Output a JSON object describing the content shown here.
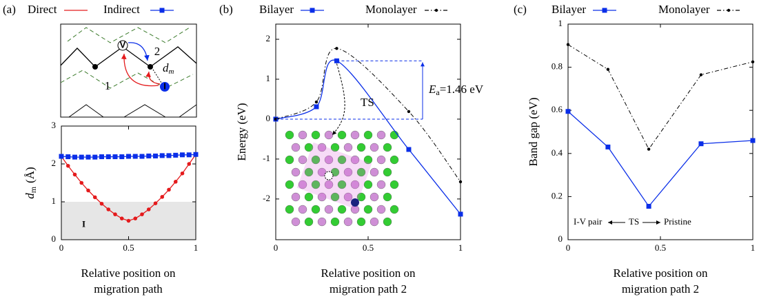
{
  "chart_data": [
    {
      "type": "line",
      "panel_label": "(a)",
      "diagram": {
        "vacancy": "V",
        "path1": "1",
        "path2": "2",
        "interstitial": "I",
        "dm": {
          "main": "d",
          "sub": "m"
        }
      },
      "xlabel": [
        "Relative position on",
        "migration path"
      ],
      "ylabel": {
        "main": "d",
        "sub": "m",
        "unit": "(Å)"
      },
      "x": [
        0,
        0.05,
        0.1,
        0.15,
        0.2,
        0.25,
        0.3,
        0.35,
        0.4,
        0.45,
        0.5,
        0.55,
        0.6,
        0.65,
        0.7,
        0.75,
        0.8,
        0.85,
        0.9,
        0.95,
        1
      ],
      "series": [
        {
          "name": "Direct",
          "color": "#e41a1c",
          "marker": "dot",
          "values": [
            2.2,
            1.95,
            1.72,
            1.5,
            1.3,
            1.12,
            0.95,
            0.8,
            0.67,
            0.56,
            0.5,
            0.56,
            0.67,
            0.8,
            0.96,
            1.13,
            1.32,
            1.53,
            1.75,
            2.0,
            2.25
          ]
        },
        {
          "name": "Indirect",
          "color": "#0a2ee8",
          "marker": "square",
          "values": [
            2.2,
            2.19,
            2.18,
            2.18,
            2.18,
            2.18,
            2.19,
            2.19,
            2.19,
            2.19,
            2.2,
            2.2,
            2.2,
            2.21,
            2.21,
            2.22,
            2.22,
            2.23,
            2.24,
            2.24,
            2.25
          ]
        }
      ],
      "region": {
        "label": "I",
        "range": [
          0,
          1
        ],
        "color": "#e6e6e6"
      },
      "xlim": [
        0,
        1
      ],
      "ylim": [
        0,
        3
      ],
      "xticks": [
        0,
        0.5,
        1
      ],
      "yticks": [
        0,
        1,
        2,
        3
      ]
    },
    {
      "type": "line",
      "panel_label": "(b)",
      "smooth": true,
      "xlabel": [
        "Relative position on",
        "migration path 2"
      ],
      "ylabel": {
        "main": "Energy (eV)"
      },
      "x": [
        0,
        0.22,
        0.33,
        0.72,
        1
      ],
      "series": [
        {
          "name": "Bilayer",
          "color": "#0a2ee8",
          "marker": "square",
          "values": [
            0,
            0.31,
            1.46,
            -0.76,
            -2.38
          ]
        },
        {
          "name": "Monolayer",
          "color": "#000000",
          "marker": "dot",
          "dash": "dashdot",
          "values": [
            0,
            0.43,
            1.77,
            0.19,
            -1.57
          ]
        }
      ],
      "annotations": {
        "ts": "TS",
        "ea": {
          "main": "E",
          "sub": "a",
          "text": "=1.46 eV",
          "value": 1.46
        }
      },
      "xlim": [
        0,
        1
      ],
      "ylim": [
        -3.02,
        2.38
      ],
      "xticks": [
        0,
        0.5,
        1
      ],
      "yticks": [
        -2,
        -1,
        0,
        1,
        2
      ]
    },
    {
      "type": "line",
      "panel_label": "(c)",
      "xlabel": [
        "Relative position on",
        "migration path 2"
      ],
      "ylabel": {
        "main": "Band gap (eV)"
      },
      "x": [
        0,
        0.216,
        0.437,
        0.72,
        1
      ],
      "series": [
        {
          "name": "Bilayer",
          "color": "#0a2ee8",
          "marker": "square",
          "values": [
            0.595,
            0.43,
            0.155,
            0.445,
            0.46
          ]
        },
        {
          "name": "Monolayer",
          "color": "#000000",
          "marker": "dot",
          "dash": "dashdot",
          "values": [
            0.905,
            0.79,
            0.42,
            0.765,
            0.825
          ]
        }
      ],
      "annotations": {
        "left": "I-V pair",
        "mid": "TS",
        "right": "Pristine"
      },
      "xlim": [
        0,
        1
      ],
      "ylim": [
        0,
        1
      ],
      "xticks": [
        0,
        0.5,
        1
      ],
      "yticks": [
        0,
        0.2,
        0.4,
        0.6,
        0.8,
        1
      ]
    }
  ]
}
